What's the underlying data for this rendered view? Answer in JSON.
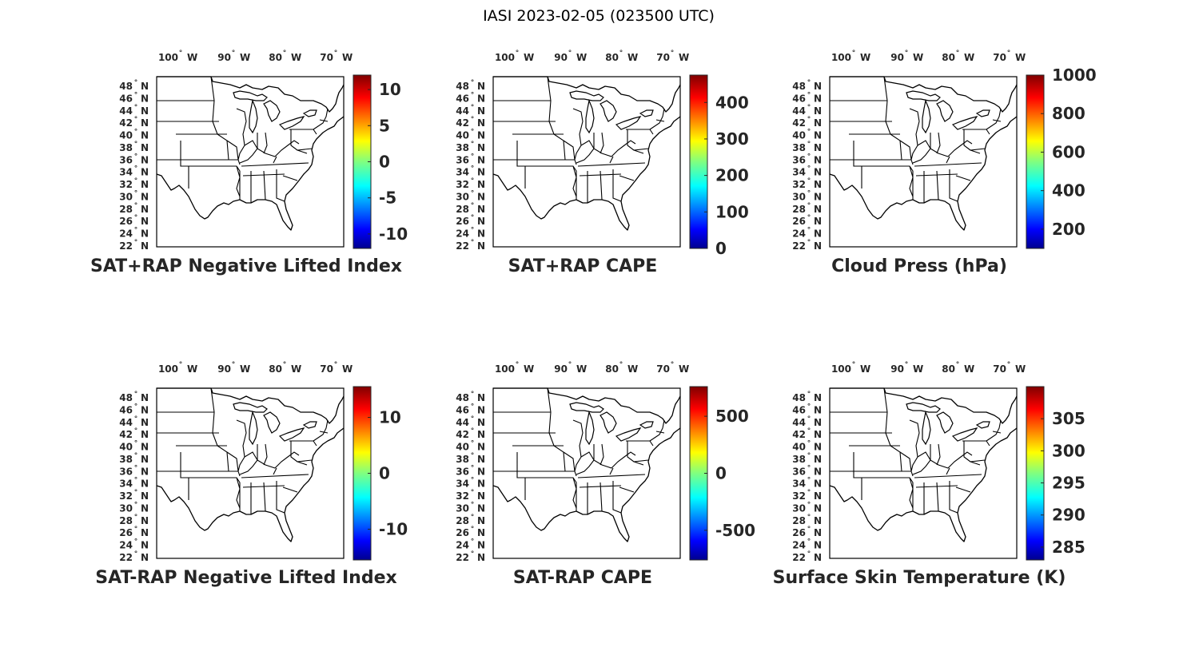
{
  "figure": {
    "title": "IASI 2023-02-05 (023500 UTC)",
    "longitude_labels": [
      {
        "deg": "100",
        "hemi": "W"
      },
      {
        "deg": "90",
        "hemi": "W"
      },
      {
        "deg": "80",
        "hemi": "W"
      },
      {
        "deg": "70",
        "hemi": "W"
      }
    ],
    "latitude_labels": [
      {
        "deg": "48",
        "hemi": "N"
      },
      {
        "deg": "46",
        "hemi": "N"
      },
      {
        "deg": "44",
        "hemi": "N"
      },
      {
        "deg": "42",
        "hemi": "N"
      },
      {
        "deg": "40",
        "hemi": "N"
      },
      {
        "deg": "38",
        "hemi": "N"
      },
      {
        "deg": "36",
        "hemi": "N"
      },
      {
        "deg": "34",
        "hemi": "N"
      },
      {
        "deg": "32",
        "hemi": "N"
      },
      {
        "deg": "30",
        "hemi": "N"
      },
      {
        "deg": "28",
        "hemi": "N"
      },
      {
        "deg": "26",
        "hemi": "N"
      },
      {
        "deg": "24",
        "hemi": "N"
      },
      {
        "deg": "22",
        "hemi": "N"
      }
    ],
    "colormap": "jet",
    "map_region": "Eastern and central United States with state boundaries"
  },
  "panels": [
    {
      "id": "sat-rap-lifted-index",
      "title": "SAT+RAP Negative Lifted Index",
      "colorbar": {
        "min": -12,
        "max": 12,
        "ticks": [
          "10",
          "5",
          "0",
          "-5",
          "-10"
        ],
        "tick_values": [
          10,
          5,
          0,
          -5,
          -10
        ]
      }
    },
    {
      "id": "sat-rap-cape",
      "title": "SAT+RAP CAPE",
      "colorbar": {
        "min": 0,
        "max": 475,
        "ticks": [
          "400",
          "300",
          "200",
          "100",
          "0"
        ],
        "tick_values": [
          400,
          300,
          200,
          100,
          0
        ]
      }
    },
    {
      "id": "cloud-press",
      "title": "Cloud Press (hPa)",
      "colorbar": {
        "min": 100,
        "max": 1000,
        "ticks": [
          "1000",
          "800",
          "600",
          "400",
          "200"
        ],
        "tick_values": [
          1000,
          800,
          600,
          400,
          200
        ]
      }
    },
    {
      "id": "sat-minus-rap-lifted-index",
      "title": "SAT-RAP Negative Lifted Index",
      "colorbar": {
        "min": -15.5,
        "max": 15.5,
        "ticks": [
          "10",
          "0",
          "-10"
        ],
        "tick_values": [
          10,
          0,
          -10
        ]
      }
    },
    {
      "id": "sat-minus-rap-cape",
      "title": "SAT-RAP CAPE",
      "colorbar": {
        "min": -760,
        "max": 760,
        "ticks": [
          "500",
          "0",
          "-500"
        ],
        "tick_values": [
          500,
          0,
          -500
        ]
      }
    },
    {
      "id": "surface-skin-temperature",
      "title": "Surface Skin Temperature (K)",
      "colorbar": {
        "min": 283,
        "max": 310,
        "ticks": [
          "305",
          "300",
          "295",
          "290",
          "285"
        ],
        "tick_values": [
          305,
          300,
          295,
          290,
          285
        ]
      }
    }
  ]
}
